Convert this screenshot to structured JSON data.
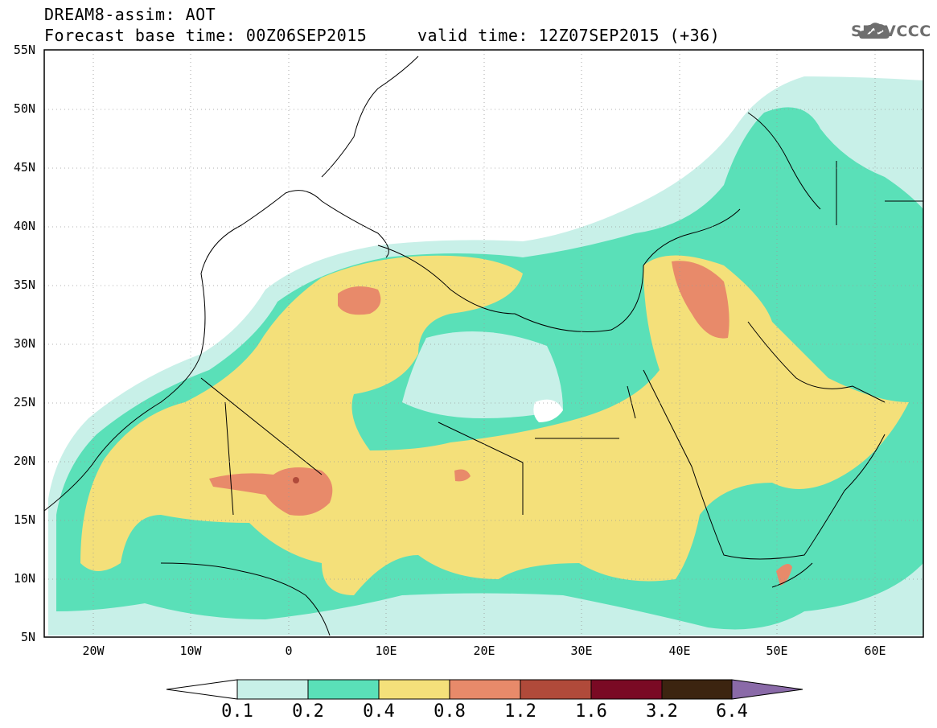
{
  "header": {
    "title_line1": "DREAM8-assim: AOT",
    "title_line2": "Forecast base time: 00Z06SEP2015     valid time: 12Z07SEP2015 (+36)",
    "logo_text": "SEEVCCC",
    "logo_icon": "cloud-logo-icon"
  },
  "map": {
    "variable": "AOT",
    "model": "DREAM8-assim",
    "extent": {
      "lon_min": -25,
      "lon_max": 65,
      "lat_min": 5,
      "lat_max": 55
    },
    "lat_labels": [
      "55N",
      "50N",
      "45N",
      "40N",
      "35N",
      "30N",
      "25N",
      "20N",
      "15N",
      "10N",
      "5N"
    ],
    "lon_labels": [
      "20W",
      "10W",
      "0",
      "10E",
      "20E",
      "30E",
      "40E",
      "50E",
      "60E"
    ]
  },
  "colorbar": {
    "levels": [
      "0.1",
      "0.2",
      "0.4",
      "0.8",
      "1.2",
      "1.6",
      "3.2",
      "6.4"
    ],
    "colors": [
      "#ffffff",
      "#c8f0e8",
      "#5ae0b8",
      "#f4e07a",
      "#e88a6a",
      "#b04a3a",
      "#7a0a24",
      "#3c2410",
      "#8a6aa8"
    ]
  }
}
